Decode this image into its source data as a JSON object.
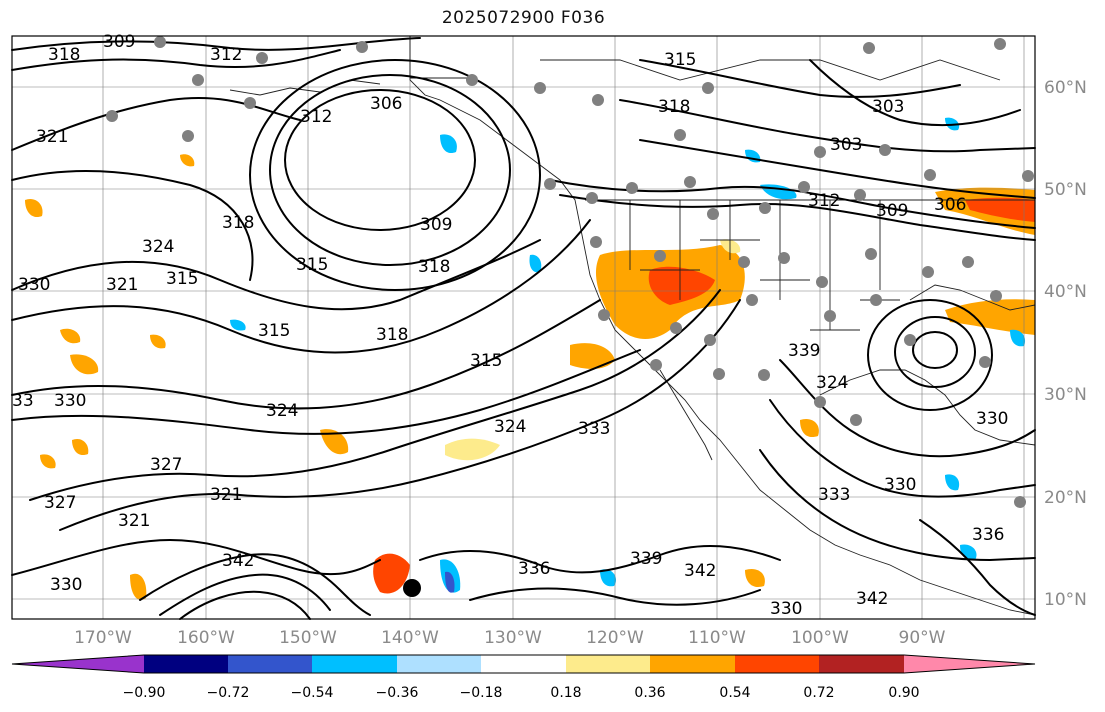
{
  "title": "2025072900 F036",
  "map": {
    "lat_labels": [
      "60°N",
      "50°N",
      "40°N",
      "30°N",
      "20°N",
      "10°N"
    ],
    "lon_labels": [
      "170°W",
      "160°W",
      "150°W",
      "140°W",
      "130°W",
      "120°W",
      "110°W",
      "100°W",
      "90°W"
    ],
    "contour_labels": [
      "309",
      "312",
      "318",
      "321",
      "324",
      "330",
      "315",
      "306",
      "312",
      "318",
      "309",
      "315",
      "318",
      "321",
      "315",
      "318",
      "324",
      "327",
      "327",
      "321",
      "315",
      "321",
      "324",
      "330",
      "342",
      "330",
      "336",
      "339",
      "342",
      "342",
      "330",
      "333",
      "339",
      "324",
      "330",
      "330",
      "336",
      "333",
      "306",
      "309",
      "312",
      "303",
      "303",
      "318",
      "315",
      "33"
    ],
    "colors": {
      "contour": "#000000",
      "grid": "#7a7a7a",
      "station_dot": "#808080"
    }
  },
  "colorbar": {
    "ticks": [
      "−0.90",
      "−0.72",
      "−0.54",
      "−0.36",
      "−0.18",
      "0.18",
      "0.36",
      "0.54",
      "0.72",
      "0.90"
    ],
    "colors": [
      "#9933cc",
      "#000080",
      "#3355cc",
      "#00bfff",
      "#aee0ff",
      "#ffffff",
      "#fdeb8c",
      "#ffa500",
      "#ff4500",
      "#b22222",
      "#ff88aa"
    ]
  }
}
